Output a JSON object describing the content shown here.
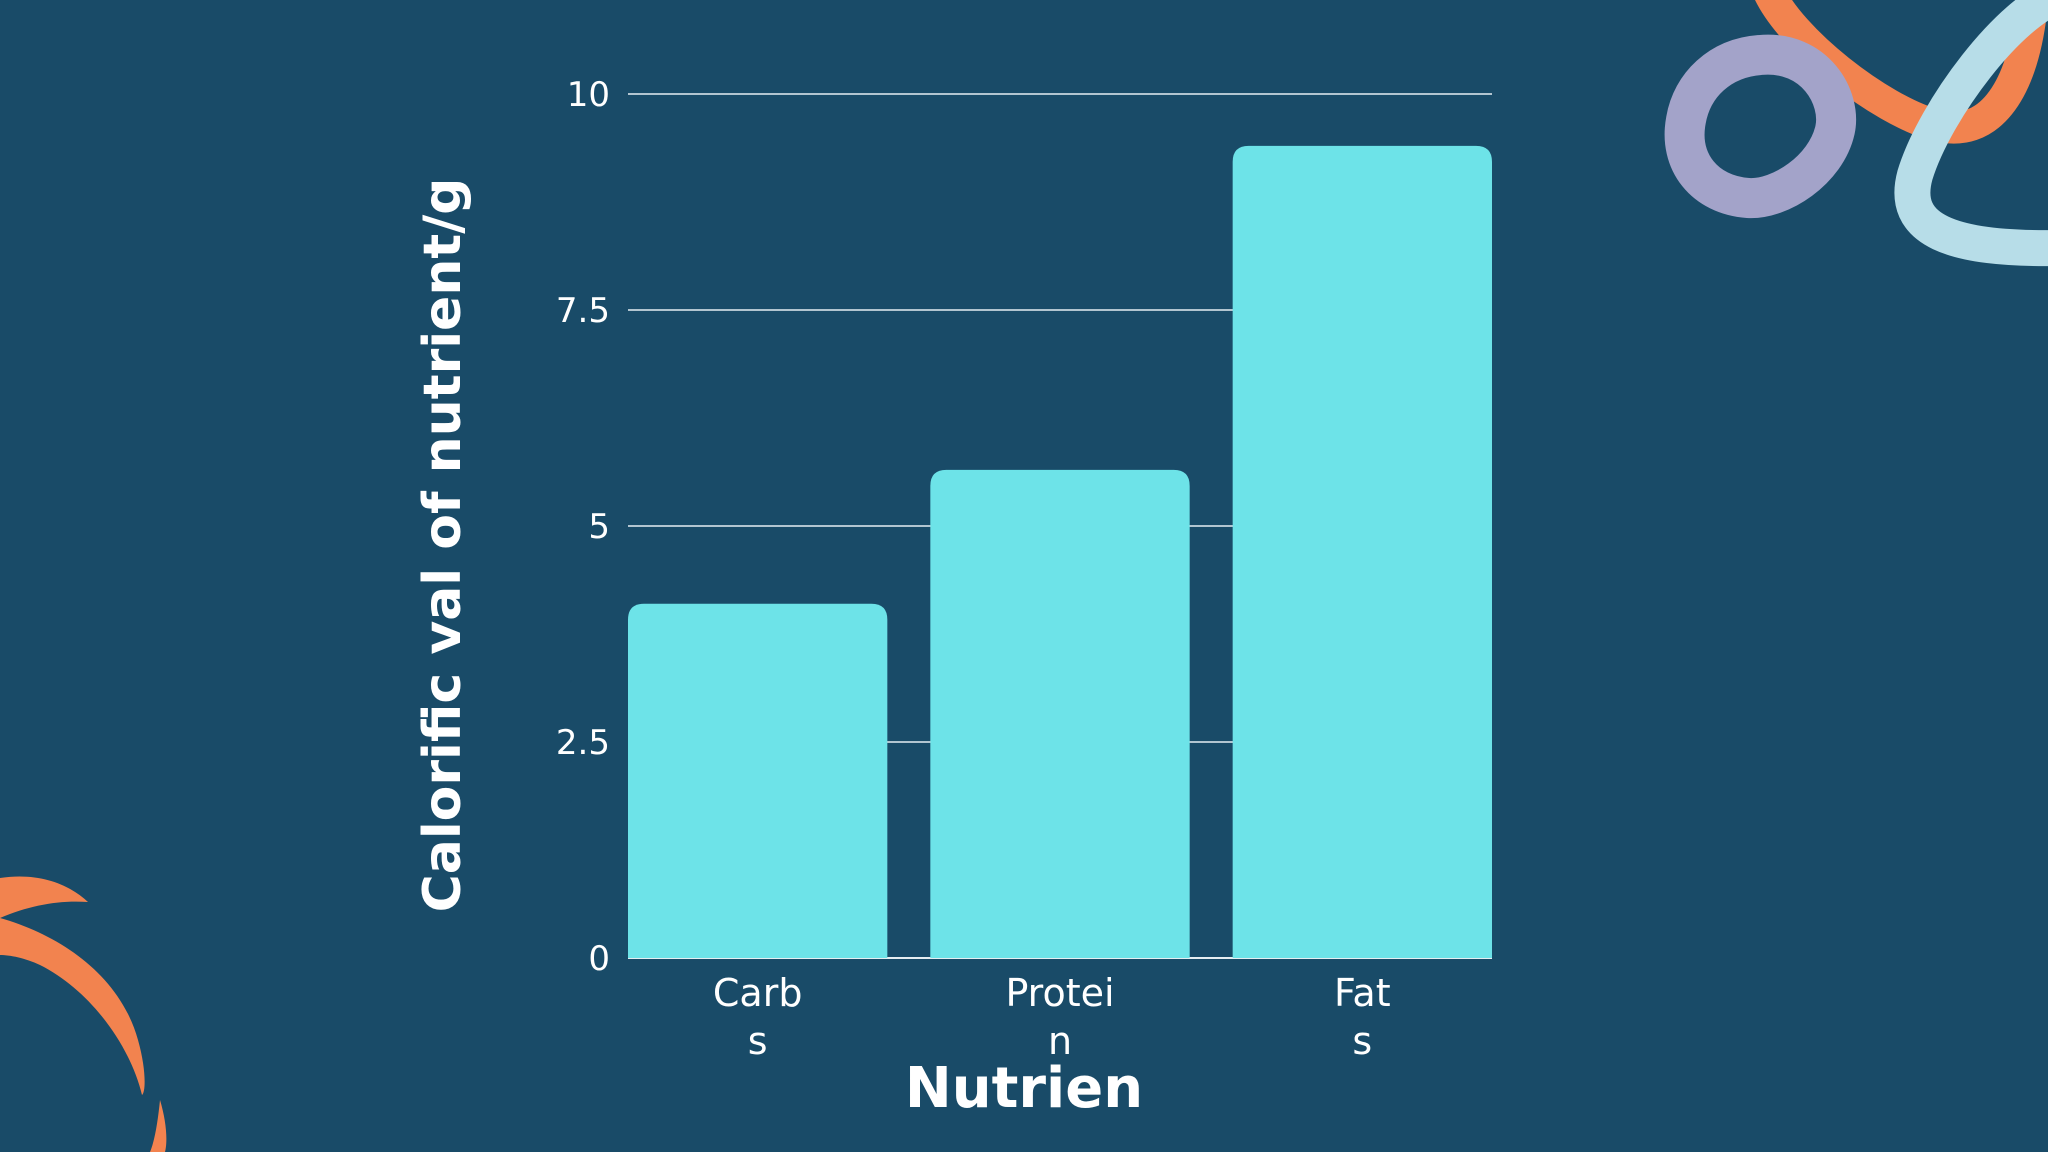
{
  "colors": {
    "background": "#194b68",
    "bar": "#6de3e8",
    "grid": "#e6eef2",
    "text": "#ffffff",
    "accent_orange": "#f2834f",
    "accent_lavender": "#a3a3c9",
    "accent_lightblue": "#b7dde8"
  },
  "decorations": [
    "orange-loop",
    "lavender-ring",
    "light-blue-loop",
    "orange-swoosh"
  ],
  "chart_data": {
    "type": "bar",
    "categories": [
      "Carbs",
      "Protein",
      "Fats"
    ],
    "category_display_lines": [
      [
        "Carb",
        "s"
      ],
      [
        "Protei",
        "n"
      ],
      [
        "Fat",
        "s"
      ]
    ],
    "values": [
      4.1,
      5.65,
      9.4
    ],
    "ylim": [
      0,
      10
    ],
    "yticks": [
      0,
      2.5,
      5,
      7.5,
      10
    ],
    "ytick_labels": [
      "0",
      "2.5",
      "5",
      "7.5",
      "10"
    ],
    "title": "",
    "xlabel": "Nutrients",
    "xlabel_visible": "Nutrien",
    "ylabel": "Calorific val of nutrient/g",
    "grid": true,
    "legend": "none"
  }
}
